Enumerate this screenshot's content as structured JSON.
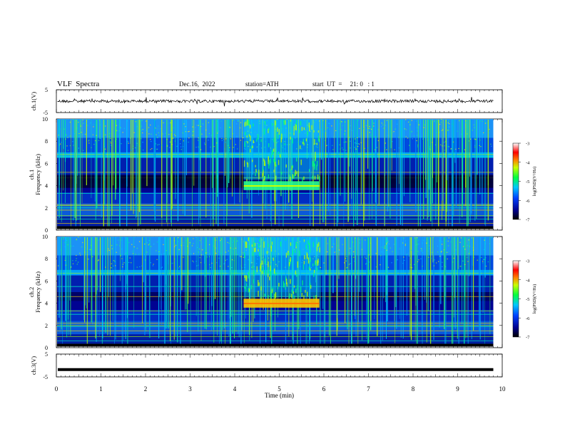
{
  "header": {
    "title": "VLF  Spectra",
    "date": "Dec.16,  2022",
    "station": "station=ATH",
    "start": "start  UT  =     21: 0   : 1"
  },
  "chart_data": [
    {
      "type": "line",
      "name": "ch1-waveform",
      "ylabel": "ch.1(V)",
      "ylim": [
        -5,
        5
      ],
      "yticks": [
        "5",
        "-5"
      ],
      "xlim": [
        0,
        10
      ],
      "level": 0,
      "color": "#000000"
    },
    {
      "type": "heatmap",
      "name": "ch1-spectrogram",
      "ylabel": "ch.1\nFrequency  (kHz)",
      "ylim": [
        0,
        10
      ],
      "yticks": [
        "10",
        "8",
        "6",
        "4",
        "2",
        "0"
      ],
      "xlim": [
        0,
        10
      ],
      "data_end_min": 9.8,
      "event_window_min": [
        4.2,
        5.9
      ],
      "event_band_khz": [
        3.6,
        4.4
      ],
      "colorbar": {
        "label": "log(PSD)(V²/Hz)",
        "range": [
          -7,
          -3
        ],
        "ticks": [
          "-3",
          "-4",
          "-5",
          "-6",
          "-7"
        ]
      }
    },
    {
      "type": "heatmap",
      "name": "ch2-spectrogram",
      "ylabel": "ch.2\nFrequency  (kHz)",
      "ylim": [
        0,
        10
      ],
      "yticks": [
        "10",
        "8",
        "6",
        "4",
        "2",
        "0"
      ],
      "xlim": [
        0,
        10
      ],
      "data_end_min": 9.8,
      "event_window_min": [
        4.2,
        5.9
      ],
      "event_band_khz": [
        3.6,
        4.4
      ],
      "colorbar": {
        "label": "log(PSD)(V²/Hz)",
        "range": [
          -7,
          -3
        ],
        "ticks": [
          "-3",
          "-4",
          "-5",
          "-6",
          "-7"
        ]
      }
    },
    {
      "type": "line",
      "name": "ch3-waveform",
      "ylabel": "ch.3(V)",
      "ylim": [
        -5,
        5
      ],
      "yticks": [
        "5",
        "-5"
      ],
      "xlim": [
        0,
        10
      ],
      "xlabel": "Time  (min)",
      "xticks": [
        "0",
        "1",
        "2",
        "3",
        "4",
        "5",
        "6",
        "7",
        "8",
        "9",
        "10"
      ],
      "level": -1.8,
      "color": "#000000"
    }
  ]
}
